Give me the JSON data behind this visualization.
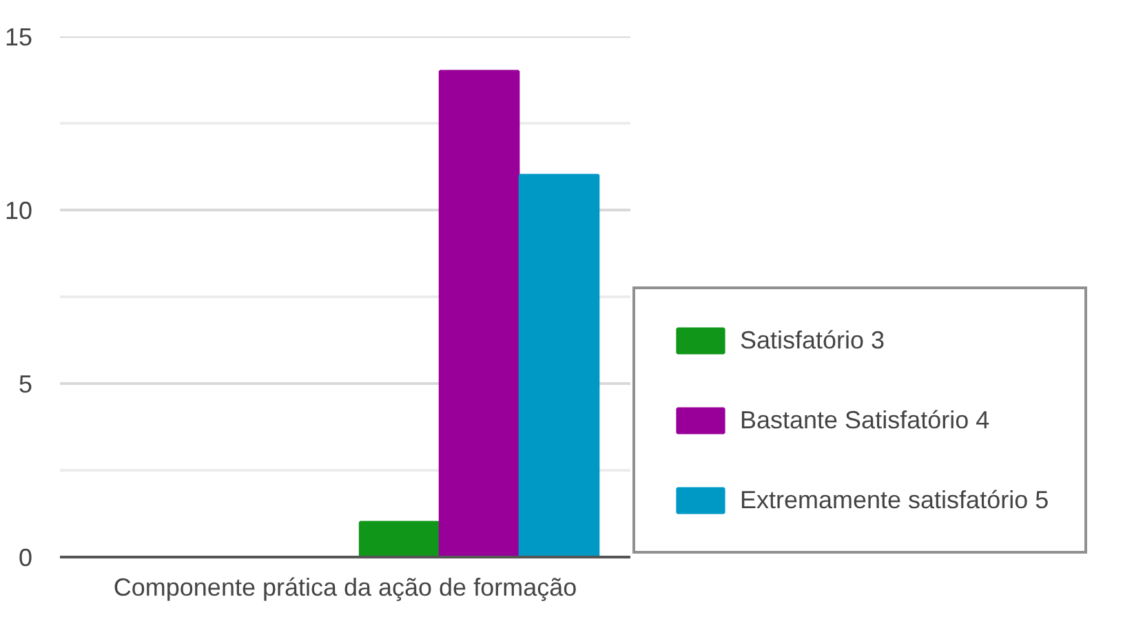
{
  "chart_data": {
    "type": "bar",
    "categories": [
      "Componente prática da ação de formação"
    ],
    "series": [
      {
        "color": "#3366cc",
        "values": [
          0
        ]
      },
      {
        "color": "#dc3912",
        "values": [
          0
        ]
      },
      {
        "color": "#ff9900",
        "values": [
          0
        ]
      },
      {
        "name": "Satisfatório 3",
        "color": "#109618",
        "values": [
          1
        ]
      },
      {
        "name": "Bastante Satisfatório 4",
        "color": "#990099",
        "values": [
          14
        ]
      },
      {
        "name": "Extremamente satisfatório 5",
        "color": "#0099c6",
        "values": [
          11
        ]
      }
    ],
    "ylim": [
      0,
      15
    ],
    "yticks": [
      0,
      {
        "value": 2.5,
        "label": null
      },
      5,
      {
        "value": 7.5,
        "label": null
      },
      10,
      {
        "value": 12.5,
        "label": null
      },
      15
    ],
    "grid": "y",
    "legend": "bottom right"
  }
}
